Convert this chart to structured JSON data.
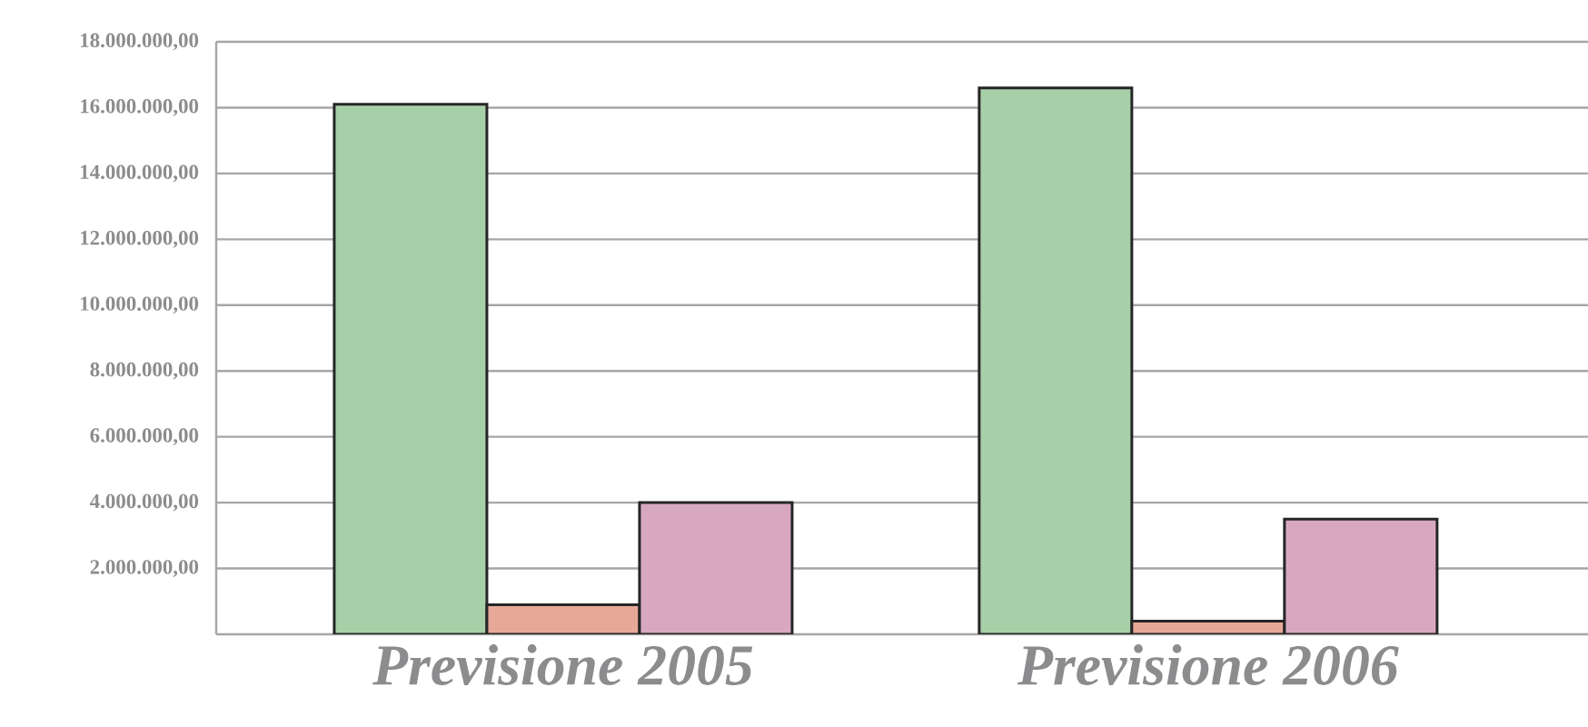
{
  "chart_data": {
    "type": "bar",
    "categories": [
      "Previsione 2005",
      "Previsione 2006"
    ],
    "series": [
      {
        "color": "#a8d0a8",
        "values": [
          16100000,
          16600000
        ]
      },
      {
        "color": "#e8a898",
        "values": [
          900000,
          400000
        ]
      },
      {
        "color": "#d8a8c0",
        "values": [
          4000000,
          3500000
        ]
      }
    ],
    "ylim": [
      0,
      18000000
    ],
    "yticks": [
      {
        "value": 2000000,
        "label": "2.000.000,00"
      },
      {
        "value": 4000000,
        "label": "4.000.000,00"
      },
      {
        "value": 6000000,
        "label": "6.000.000,00"
      },
      {
        "value": 8000000,
        "label": "8.000.000,00"
      },
      {
        "value": 10000000,
        "label": "10.000.000,00"
      },
      {
        "value": 12000000,
        "label": "12.000.000,00"
      },
      {
        "value": 14000000,
        "label": "14.000.000,00"
      },
      {
        "value": 16000000,
        "label": "16.000.000,00"
      },
      {
        "value": 18000000,
        "label": "18.000.000,00"
      }
    ],
    "grid": "y"
  }
}
